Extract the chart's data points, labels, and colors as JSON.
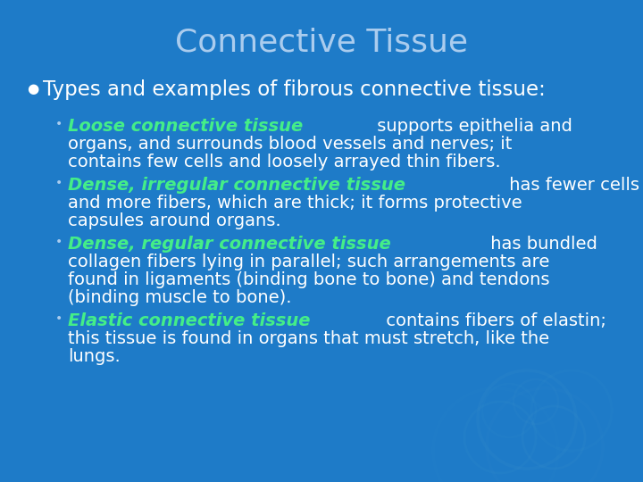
{
  "title": "Connective Tissue",
  "title_color": "#aaccee",
  "title_fontsize": 26,
  "background_color": "#1e7bc8",
  "bullet_color": "#ffffff",
  "bullet_text": "Types and examples of fibrous connective tissue:",
  "bullet_fontsize": 16.5,
  "sub_bullet_dot_color": "#aaccee",
  "green_color": "#44ee88",
  "white_color": "#ffffff",
  "sub_bullets": [
    {
      "green_part": "Loose connective tissue",
      "white_first": " supports epithelia and",
      "white_rest": [
        "organs, and surrounds blood vessels and nerves; it",
        "contains few cells and loosely arrayed thin fibers."
      ]
    },
    {
      "green_part": "Dense, irregular connective tissue",
      "white_first": " has fewer cells",
      "white_rest": [
        "and more fibers, which are thick; it forms protective",
        "capsules around organs."
      ]
    },
    {
      "green_part": "Dense, regular connective tissue",
      "white_first": " has bundled",
      "white_rest": [
        "collagen fibers lying in parallel; such arrangements are",
        "found in ligaments (binding bone to bone) and tendons",
        "(binding muscle to bone)."
      ]
    },
    {
      "green_part": "Elastic connective tissue",
      "white_first": " contains fibers of elastin;",
      "white_rest": [
        "this tissue is found in organs that must stretch, like the",
        "lungs."
      ]
    }
  ],
  "sub_fontsize": 14,
  "figwidth": 7.2,
  "figheight": 5.4,
  "dpi": 100
}
